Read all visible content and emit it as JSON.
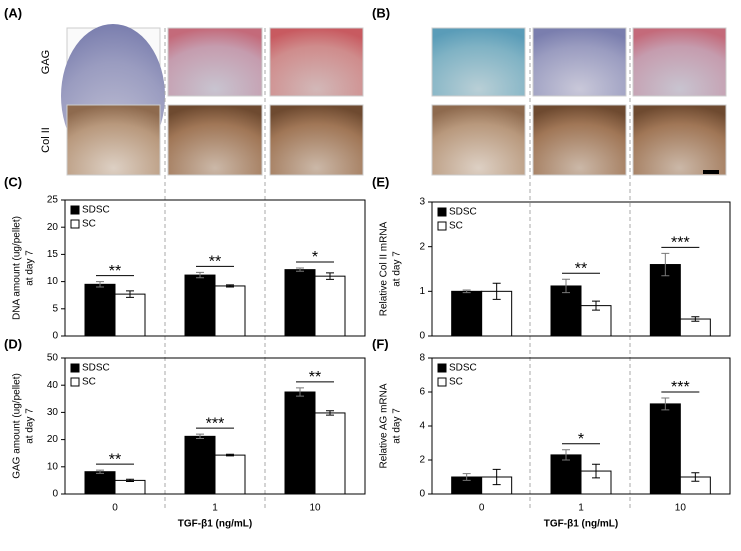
{
  "histology": {
    "left_label": "(A)",
    "right_label": "(B)",
    "row_labels": [
      "GAG",
      "Col II"
    ]
  },
  "chart_data": [
    {
      "type": "bar",
      "panel_label": "(C)",
      "ylabel": [
        "DNA amount (ug/pellet)",
        "at day 7"
      ],
      "categories": [
        null,
        null,
        null
      ],
      "series": [
        {
          "name": "SDSC",
          "color": "#000000",
          "values": [
            9.5,
            11.2,
            12.2
          ],
          "errors": [
            0.5,
            0.5,
            0.3
          ]
        },
        {
          "name": "SC",
          "color": "#ffffff",
          "values": [
            7.7,
            9.2,
            11.0
          ],
          "errors": [
            0.6,
            0.2,
            0.6
          ]
        }
      ],
      "annotations": [
        "**",
        "**",
        "*"
      ],
      "ylim": [
        0,
        25
      ],
      "yticks": [
        0,
        5,
        10,
        15,
        20,
        25
      ]
    },
    {
      "type": "bar",
      "panel_label": "(D)",
      "ylabel": [
        "GAG amount (ug/pellet)",
        "at day 7"
      ],
      "categories": [
        "0",
        "1",
        "10"
      ],
      "xlabel": "TGF-β1 (ng/mL)",
      "series": [
        {
          "name": "SDSC",
          "color": "#000000",
          "values": [
            8.2,
            21.2,
            37.5
          ],
          "errors": [
            0.6,
            0.8,
            1.5
          ]
        },
        {
          "name": "SC",
          "color": "#ffffff",
          "values": [
            5.0,
            14.3,
            29.8
          ],
          "errors": [
            0.4,
            0.3,
            0.8
          ]
        }
      ],
      "annotations": [
        "**",
        "***",
        "**"
      ],
      "ylim": [
        0,
        50
      ],
      "yticks": [
        0,
        10,
        20,
        30,
        40,
        50
      ]
    },
    {
      "type": "bar",
      "panel_label": "(E)",
      "ylabel": [
        "Relative Col II mRNA",
        "at day 7"
      ],
      "categories": [
        null,
        null,
        null
      ],
      "series": [
        {
          "name": "SDSC",
          "color": "#000000",
          "values": [
            1.0,
            1.12,
            1.6
          ],
          "errors": [
            0.03,
            0.15,
            0.25
          ]
        },
        {
          "name": "SC",
          "color": "#ffffff",
          "values": [
            1.0,
            0.68,
            0.38
          ],
          "errors": [
            0.18,
            0.1,
            0.05
          ]
        }
      ],
      "annotations": [
        null,
        "**",
        "***"
      ],
      "ylim": [
        0,
        3
      ],
      "yticks": [
        0,
        1,
        2,
        3
      ]
    },
    {
      "type": "bar",
      "panel_label": "(F)",
      "ylabel": [
        "Relative AG mRNA",
        "at day 7"
      ],
      "categories": [
        "0",
        "1",
        "10"
      ],
      "xlabel": "TGF-β1 (ng/mL)",
      "series": [
        {
          "name": "SDSC",
          "color": "#000000",
          "values": [
            1.0,
            2.3,
            5.3
          ],
          "errors": [
            0.2,
            0.3,
            0.35
          ]
        },
        {
          "name": "SC",
          "color": "#ffffff",
          "values": [
            1.0,
            1.35,
            1.0
          ],
          "errors": [
            0.45,
            0.4,
            0.25
          ]
        }
      ],
      "annotations": [
        null,
        "*",
        "***"
      ],
      "ylim": [
        0,
        8
      ],
      "yticks": [
        0,
        2,
        4,
        6,
        8
      ]
    }
  ]
}
